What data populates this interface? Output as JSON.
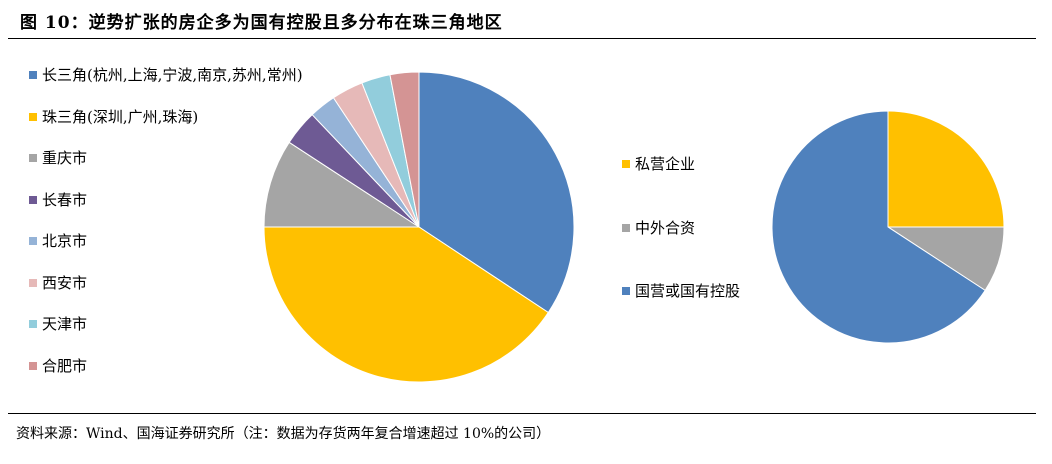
{
  "title": "图 10：逆势扩张的房企多为国有控股且多分布在珠三角地区",
  "source": "资料来源：Wind、国海证券研究所（注：数据为存货两年复合增速超过 10%的公司）",
  "chart_data": [
    {
      "type": "pie",
      "start_angle": "12 o'clock, clockwise",
      "legend_position": "left",
      "categories": [
        "长三角(杭州,上海,宁波,南京,苏州,常州)",
        "珠三角(深圳,广州,珠海)",
        "重庆市",
        "长春市",
        "北京市",
        "西安市",
        "天津市",
        "合肥市"
      ],
      "values": [
        34.3,
        40.7,
        9.2,
        3.7,
        2.8,
        3.3,
        3.0,
        3.0
      ],
      "colors": [
        "#4F81BD",
        "#FFC000",
        "#A5A5A5",
        "#6E5A94",
        "#95B3D7",
        "#E6B9B8",
        "#92CDDC",
        "#D49494"
      ]
    },
    {
      "type": "pie",
      "start_angle": "12 o'clock, clockwise",
      "legend_position": "left",
      "categories": [
        "私营企业",
        "中外合资",
        "国营或国有控股"
      ],
      "values": [
        25.0,
        9.2,
        65.8
      ],
      "colors": [
        "#FFC000",
        "#A5A5A5",
        "#4F81BD"
      ]
    }
  ]
}
